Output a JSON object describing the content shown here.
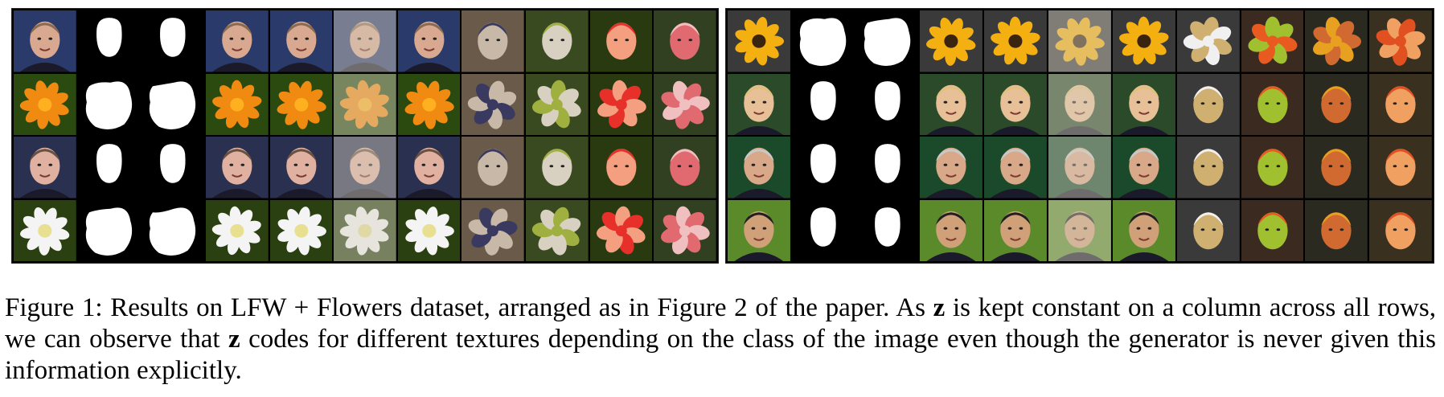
{
  "caption": {
    "label": "Figure 1:",
    "part1": "Results on LFW + Flowers dataset, arranged as in Figure 2 of the paper. As",
    "z1": "z",
    "part2": "is kept constant on a column across all rows, we can observe that",
    "z2": "z",
    "part3": "codes for different textures depending on the class of the image even though the generator is never given this information explicitly."
  },
  "panels": [
    {
      "name": "left-panel",
      "rows": [
        {
          "kind": "face",
          "c": [
            "#2a3a6a",
            "#d8a890",
            "#8a6a50"
          ]
        },
        {
          "kind": "flower",
          "c": [
            "#f08a10",
            "#2a4a10",
            "#ffb020"
          ]
        },
        {
          "kind": "face",
          "c": [
            "#2a3050",
            "#e0b0a0",
            "#6a5040"
          ]
        },
        {
          "kind": "flower",
          "c": [
            "#f4f4f4",
            "#2a4010",
            "#e8e090"
          ]
        }
      ],
      "genColors": [
        [
          "#3a3a60",
          "#c8b8a8",
          "#6a5a4a"
        ],
        [
          "#a0b040",
          "#d8d0c0",
          "#3a4a20"
        ],
        [
          "#e8302a",
          "#f4a080",
          "#2a3a10"
        ],
        [
          "#f0c0c0",
          "#e06a70",
          "#304020"
        ]
      ]
    },
    {
      "name": "right-panel",
      "rows": [
        {
          "kind": "flower",
          "c": [
            "#f4b010",
            "#3a3a3a",
            "#3a2410"
          ]
        },
        {
          "kind": "face",
          "c": [
            "#2a4a2a",
            "#e8c098",
            "#e0c080"
          ]
        },
        {
          "kind": "face",
          "c": [
            "#1a4a2a",
            "#d8a888",
            "#c8c8c8"
          ]
        },
        {
          "kind": "face",
          "c": [
            "#5a8a2a",
            "#d0a078",
            "#202020"
          ]
        }
      ],
      "genColors": [
        [
          "#f0f0f0",
          "#d0b070",
          "#3a3a3a"
        ],
        [
          "#e85a20",
          "#a0c030",
          "#3a2a20"
        ],
        [
          "#e8a020",
          "#d06a30",
          "#2a2a20"
        ],
        [
          "#e05020",
          "#f0a060",
          "#3a3020"
        ]
      ]
    }
  ]
}
